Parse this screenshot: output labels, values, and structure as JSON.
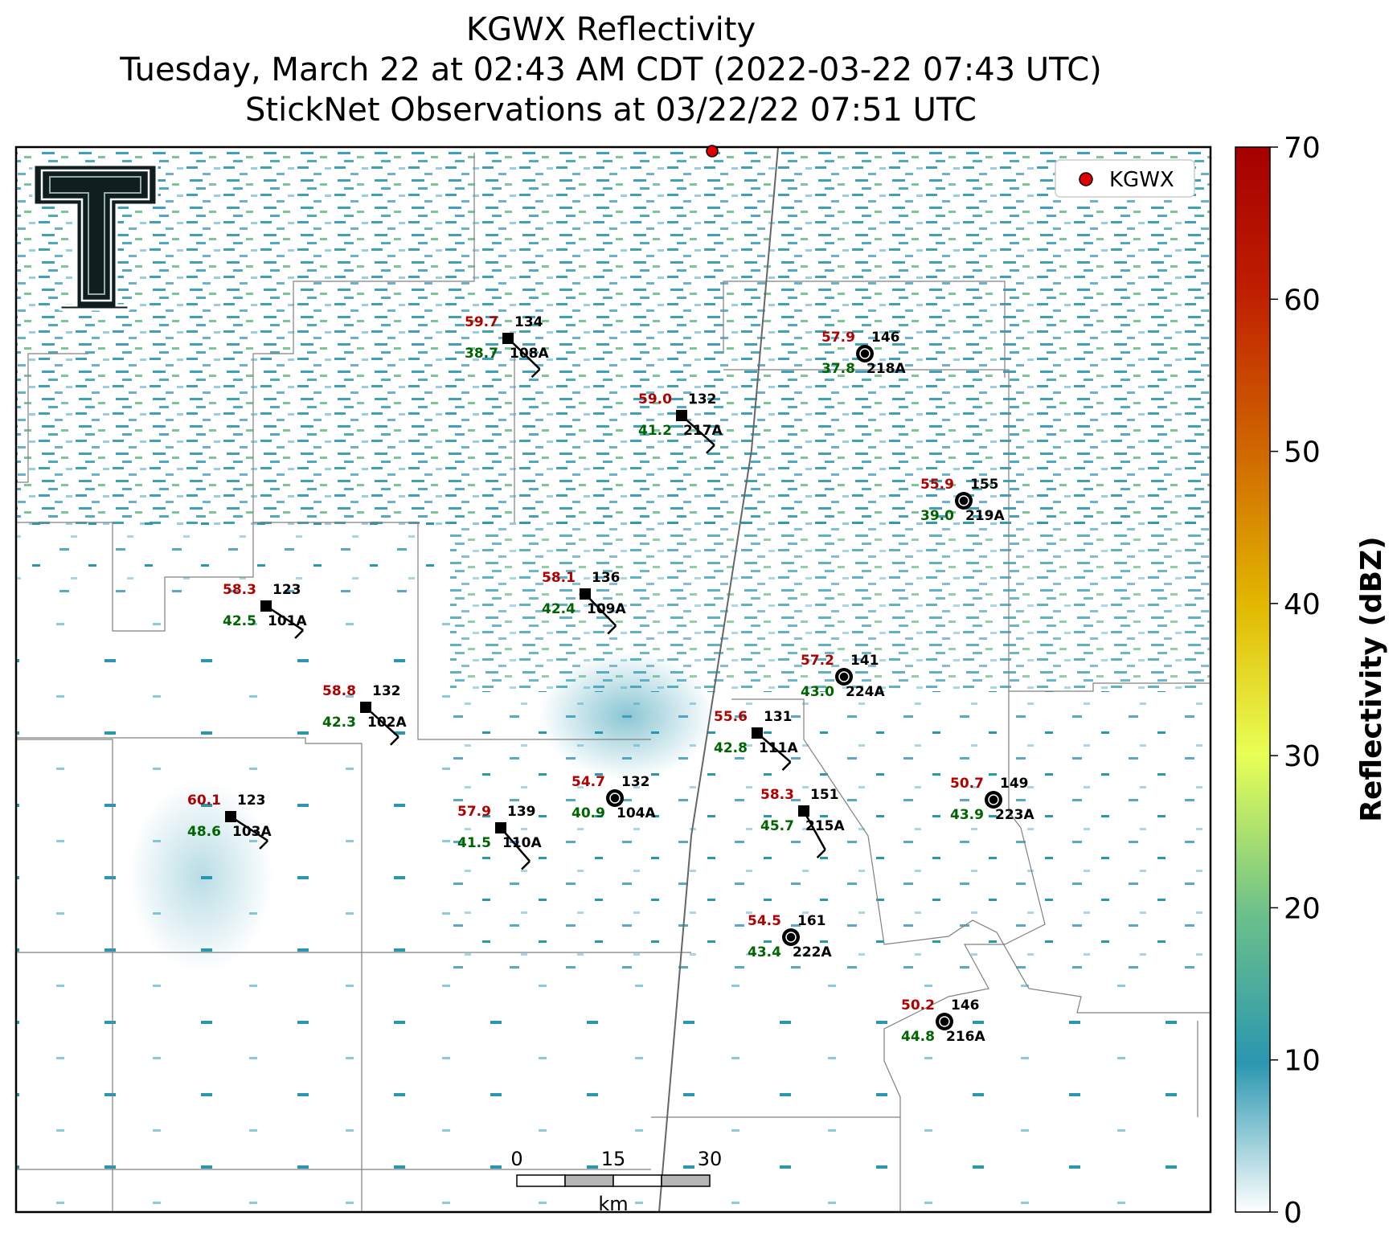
{
  "title": {
    "line1": "KGWX Reflectivity",
    "line2": "Tuesday, March 22 at 02:43 AM CDT (2022-03-22 07:43 UTC)",
    "line3": "StickNet Observations at 03/22/22 07:51 UTC"
  },
  "legend": {
    "label": "KGWX",
    "color": "#e00000"
  },
  "radar": {
    "name": "KGWX"
  },
  "colorbar": {
    "label": "Reflectivity (dBZ)",
    "min": 0,
    "max": 70,
    "ticks": [
      "0",
      "10",
      "20",
      "30",
      "40",
      "50",
      "60",
      "70"
    ],
    "colors": [
      "#ffffff",
      "#2a97b0",
      "#6cc08a",
      "#e8ff55",
      "#e2b800",
      "#d06a00",
      "#c02000",
      "#a50000"
    ]
  },
  "scale_bar": {
    "labels": [
      "0",
      "15",
      "30"
    ],
    "unit": "km"
  },
  "stations": [
    {
      "id": "108A",
      "temp": "59.7",
      "dew": "38.7",
      "dir": "134",
      "type": "square"
    },
    {
      "id": "217A",
      "temp": "59.0",
      "dew": "41.2",
      "dir": "132",
      "type": "square"
    },
    {
      "id": "218A",
      "temp": "57.9",
      "dew": "37.8",
      "dir": "146",
      "type": "circle"
    },
    {
      "id": "219A",
      "temp": "55.9",
      "dew": "39.0",
      "dir": "155",
      "type": "circle"
    },
    {
      "id": "101A",
      "temp": "58.3",
      "dew": "42.5",
      "dir": "123",
      "type": "square"
    },
    {
      "id": "109A",
      "temp": "58.1",
      "dew": "42.4",
      "dir": "136",
      "type": "square"
    },
    {
      "id": "224A",
      "temp": "57.2",
      "dew": "43.0",
      "dir": "141",
      "type": "circle"
    },
    {
      "id": "102A",
      "temp": "58.8",
      "dew": "42.3",
      "dir": "132",
      "type": "square"
    },
    {
      "id": "111A",
      "temp": "55.6",
      "dew": "42.8",
      "dir": "131",
      "type": "square"
    },
    {
      "id": "104A",
      "temp": "54.7",
      "dew": "40.9",
      "dir": "132",
      "type": "circle"
    },
    {
      "id": "215A",
      "temp": "58.3",
      "dew": "45.7",
      "dir": "151",
      "type": "square"
    },
    {
      "id": "223A",
      "temp": "50.7",
      "dew": "43.9",
      "dir": "149",
      "type": "circle"
    },
    {
      "id": "103A",
      "temp": "60.1",
      "dew": "48.6",
      "dir": "123",
      "type": "square"
    },
    {
      "id": "110A",
      "temp": "57.9",
      "dew": "41.5",
      "dir": "139",
      "type": "square"
    },
    {
      "id": "222A",
      "temp": "54.5",
      "dew": "43.4",
      "dir": "161",
      "type": "circle"
    },
    {
      "id": "216A",
      "temp": "50.2",
      "dew": "44.8",
      "dir": "146",
      "type": "circle"
    }
  ]
}
